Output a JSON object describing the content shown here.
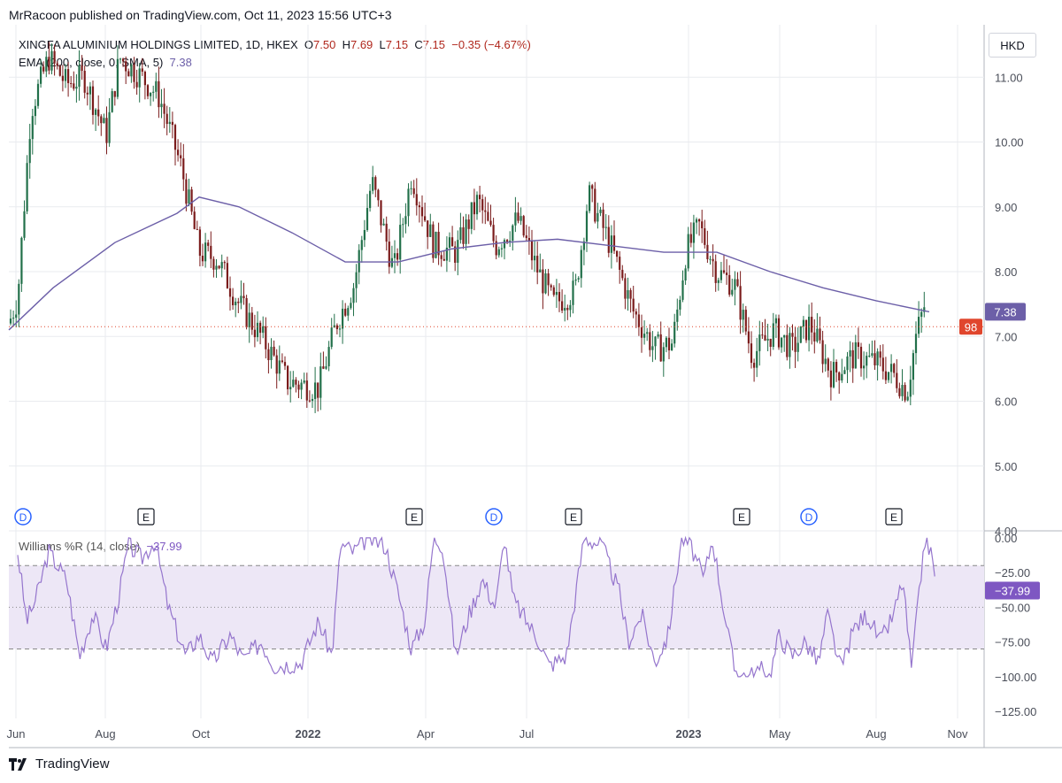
{
  "header": {
    "published": "MrRacoon published on TradingView.com, Oct 11, 2023 15:56 UTC+3"
  },
  "footer": {
    "brand": "TradingView"
  },
  "legend": {
    "symbol": "XINGFA ALUMINIUM HOLDINGS LIMITED, 1D, HKEX",
    "o_label": "O",
    "o": "7.50",
    "h_label": "H",
    "h": "7.69",
    "l_label": "L",
    "l": "7.15",
    "c_label": "C",
    "c": "7.15",
    "change": "−0.35 (−4.67%)",
    "ema_label": "EMA (200, close, 0, SMA, 5)",
    "ema_value": "7.38"
  },
  "currency": "HKD",
  "williams_legend": {
    "label": "Williams %R (14, close)",
    "value": "−37.99"
  },
  "colors": {
    "up": "#22704a",
    "down": "#7b1c1c",
    "ema": "#6c5fa8",
    "wr_line": "#9575cd",
    "wr_band": "#ede7f6",
    "last_price": "#e0462d",
    "grid": "#e9ebef",
    "axis_text": "#4a4e59"
  },
  "chart_data": {
    "type": "candlestick",
    "price_axis": {
      "ticks": [
        "4.00",
        "5.00",
        "6.00",
        "7.00",
        "8.00",
        "9.00",
        "10.00",
        "11.00"
      ],
      "range": [
        4.0,
        11.7
      ]
    },
    "x_axis_labels": [
      "Jun",
      "Aug",
      "Oct",
      "2022",
      "Apr",
      "Jul",
      "2023",
      "May",
      "Aug",
      "Nov"
    ],
    "x_axis_bold": [
      "2022",
      "2023"
    ],
    "last_price_badge": "98",
    "last_price_value": 7.15,
    "ema_badge": "7.38",
    "ema_value": 7.38,
    "ema_anchors": [
      [
        0,
        7.1
      ],
      [
        50,
        7.75
      ],
      [
        120,
        8.45
      ],
      [
        190,
        8.9
      ],
      [
        215,
        9.15
      ],
      [
        260,
        9.0
      ],
      [
        320,
        8.6
      ],
      [
        380,
        8.15
      ],
      [
        440,
        8.15
      ],
      [
        500,
        8.35
      ],
      [
        560,
        8.45
      ],
      [
        620,
        8.5
      ],
      [
        680,
        8.4
      ],
      [
        740,
        8.3
      ],
      [
        800,
        8.3
      ],
      [
        860,
        8.0
      ],
      [
        920,
        7.75
      ],
      [
        980,
        7.55
      ],
      [
        1040,
        7.38
      ]
    ],
    "price_path": [
      [
        10,
        7.2
      ],
      [
        20,
        7.6
      ],
      [
        35,
        10.5
      ],
      [
        55,
        11.3
      ],
      [
        75,
        10.9
      ],
      [
        95,
        11.0
      ],
      [
        120,
        10.1
      ],
      [
        135,
        11.3
      ],
      [
        160,
        11.0
      ],
      [
        180,
        10.7
      ],
      [
        205,
        9.6
      ],
      [
        225,
        8.3
      ],
      [
        245,
        8.2
      ],
      [
        270,
        7.5
      ],
      [
        295,
        7.0
      ],
      [
        325,
        6.3
      ],
      [
        360,
        6.2
      ],
      [
        380,
        7.2
      ],
      [
        400,
        7.8
      ],
      [
        420,
        9.4
      ],
      [
        445,
        8.0
      ],
      [
        465,
        9.5
      ],
      [
        490,
        8.4
      ],
      [
        515,
        8.3
      ],
      [
        540,
        9.1
      ],
      [
        560,
        8.4
      ],
      [
        585,
        8.8
      ],
      [
        605,
        8.1
      ],
      [
        625,
        7.5
      ],
      [
        650,
        7.7
      ],
      [
        665,
        9.2
      ],
      [
        690,
        8.4
      ],
      [
        715,
        7.4
      ],
      [
        740,
        6.8
      ],
      [
        760,
        6.9
      ],
      [
        775,
        8.3
      ],
      [
        790,
        8.7
      ],
      [
        810,
        8.0
      ],
      [
        830,
        7.8
      ],
      [
        850,
        6.7
      ],
      [
        875,
        7.1
      ],
      [
        895,
        6.8
      ],
      [
        915,
        7.2
      ],
      [
        940,
        6.4
      ],
      [
        965,
        6.7
      ],
      [
        990,
        6.6
      ],
      [
        1010,
        6.4
      ],
      [
        1025,
        6.15
      ],
      [
        1035,
        7.0
      ],
      [
        1045,
        7.5
      ]
    ],
    "earnings_markers": [
      [
        26,
        "D"
      ],
      [
        165,
        "E"
      ],
      [
        468,
        "E"
      ],
      [
        558,
        "D"
      ],
      [
        648,
        "E"
      ],
      [
        838,
        "E"
      ],
      [
        914,
        "D"
      ],
      [
        1010,
        "E"
      ]
    ],
    "williams": {
      "ticks": [
        "0.00",
        "−25.00",
        "−50.00",
        "−75.00",
        "−100.00",
        "−125.00"
      ],
      "range": [
        -130,
        5
      ],
      "band": [
        -20,
        -80
      ],
      "midline": -50,
      "last_value": -37.99,
      "badge": "−37.99",
      "path": [
        [
          10,
          -10
        ],
        [
          20,
          -60
        ],
        [
          30,
          -45
        ],
        [
          45,
          -10
        ],
        [
          65,
          -30
        ],
        [
          80,
          -85
        ],
        [
          95,
          -55
        ],
        [
          110,
          -80
        ],
        [
          125,
          -40
        ],
        [
          135,
          -5
        ],
        [
          150,
          -15
        ],
        [
          165,
          -2
        ],
        [
          180,
          -50
        ],
        [
          200,
          -85
        ],
        [
          215,
          -70
        ],
        [
          230,
          -90
        ],
        [
          250,
          -70
        ],
        [
          265,
          -88
        ],
        [
          285,
          -75
        ],
        [
          300,
          -92
        ],
        [
          330,
          -90
        ],
        [
          350,
          -60
        ],
        [
          365,
          -85
        ],
        [
          375,
          -5
        ],
        [
          390,
          -10
        ],
        [
          405,
          0
        ],
        [
          425,
          -5
        ],
        [
          440,
          -40
        ],
        [
          455,
          -80
        ],
        [
          470,
          -60
        ],
        [
          480,
          0
        ],
        [
          490,
          -5
        ],
        [
          505,
          -85
        ],
        [
          520,
          -55
        ],
        [
          535,
          -30
        ],
        [
          550,
          -50
        ],
        [
          560,
          0
        ],
        [
          570,
          -45
        ],
        [
          585,
          -60
        ],
        [
          600,
          -75
        ],
        [
          610,
          -92
        ],
        [
          630,
          -85
        ],
        [
          650,
          0
        ],
        [
          670,
          -5
        ],
        [
          690,
          -40
        ],
        [
          700,
          -75
        ],
        [
          715,
          -55
        ],
        [
          730,
          -90
        ],
        [
          745,
          -70
        ],
        [
          760,
          0
        ],
        [
          770,
          -5
        ],
        [
          785,
          -30
        ],
        [
          795,
          0
        ],
        [
          810,
          -60
        ],
        [
          820,
          -95
        ],
        [
          835,
          -100
        ],
        [
          850,
          -95
        ],
        [
          860,
          -100
        ],
        [
          870,
          -70
        ],
        [
          885,
          -85
        ],
        [
          900,
          -75
        ],
        [
          915,
          -90
        ],
        [
          925,
          -55
        ],
        [
          940,
          -95
        ],
        [
          955,
          -65
        ],
        [
          970,
          -55
        ],
        [
          985,
          -75
        ],
        [
          1000,
          -55
        ],
        [
          1010,
          -30
        ],
        [
          1020,
          -95
        ],
        [
          1035,
          0
        ],
        [
          1042,
          -10
        ],
        [
          1048,
          -38
        ]
      ]
    }
  }
}
